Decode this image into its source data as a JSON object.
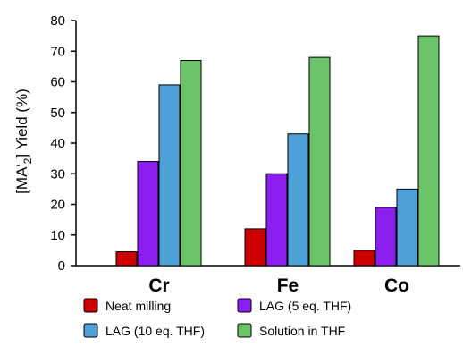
{
  "chart_data": {
    "type": "bar",
    "ylabel_parts": {
      "pre": "[MA'",
      "sub": "2",
      "post": "] Yield (%)"
    },
    "categories": [
      "Cr",
      "Fe",
      "Co"
    ],
    "ylim": [
      0,
      80
    ],
    "yticks": [
      0,
      10,
      20,
      30,
      40,
      50,
      60,
      70,
      80
    ],
    "grid": false,
    "legend_position": "bottom",
    "series": [
      {
        "name": "Neat milling",
        "color": "#cc0000",
        "values": [
          4.5,
          12,
          5
        ]
      },
      {
        "name": "LAG (5 eq. THF)",
        "color": "#8b1ff0",
        "values": [
          34,
          30,
          19
        ]
      },
      {
        "name": "LAG (10 eq. THF)",
        "color": "#4fa0d8",
        "values": [
          59,
          43,
          25
        ]
      },
      {
        "name": "Solution in THF",
        "color": "#6cc46a",
        "values": [
          67,
          68,
          75
        ]
      }
    ]
  }
}
